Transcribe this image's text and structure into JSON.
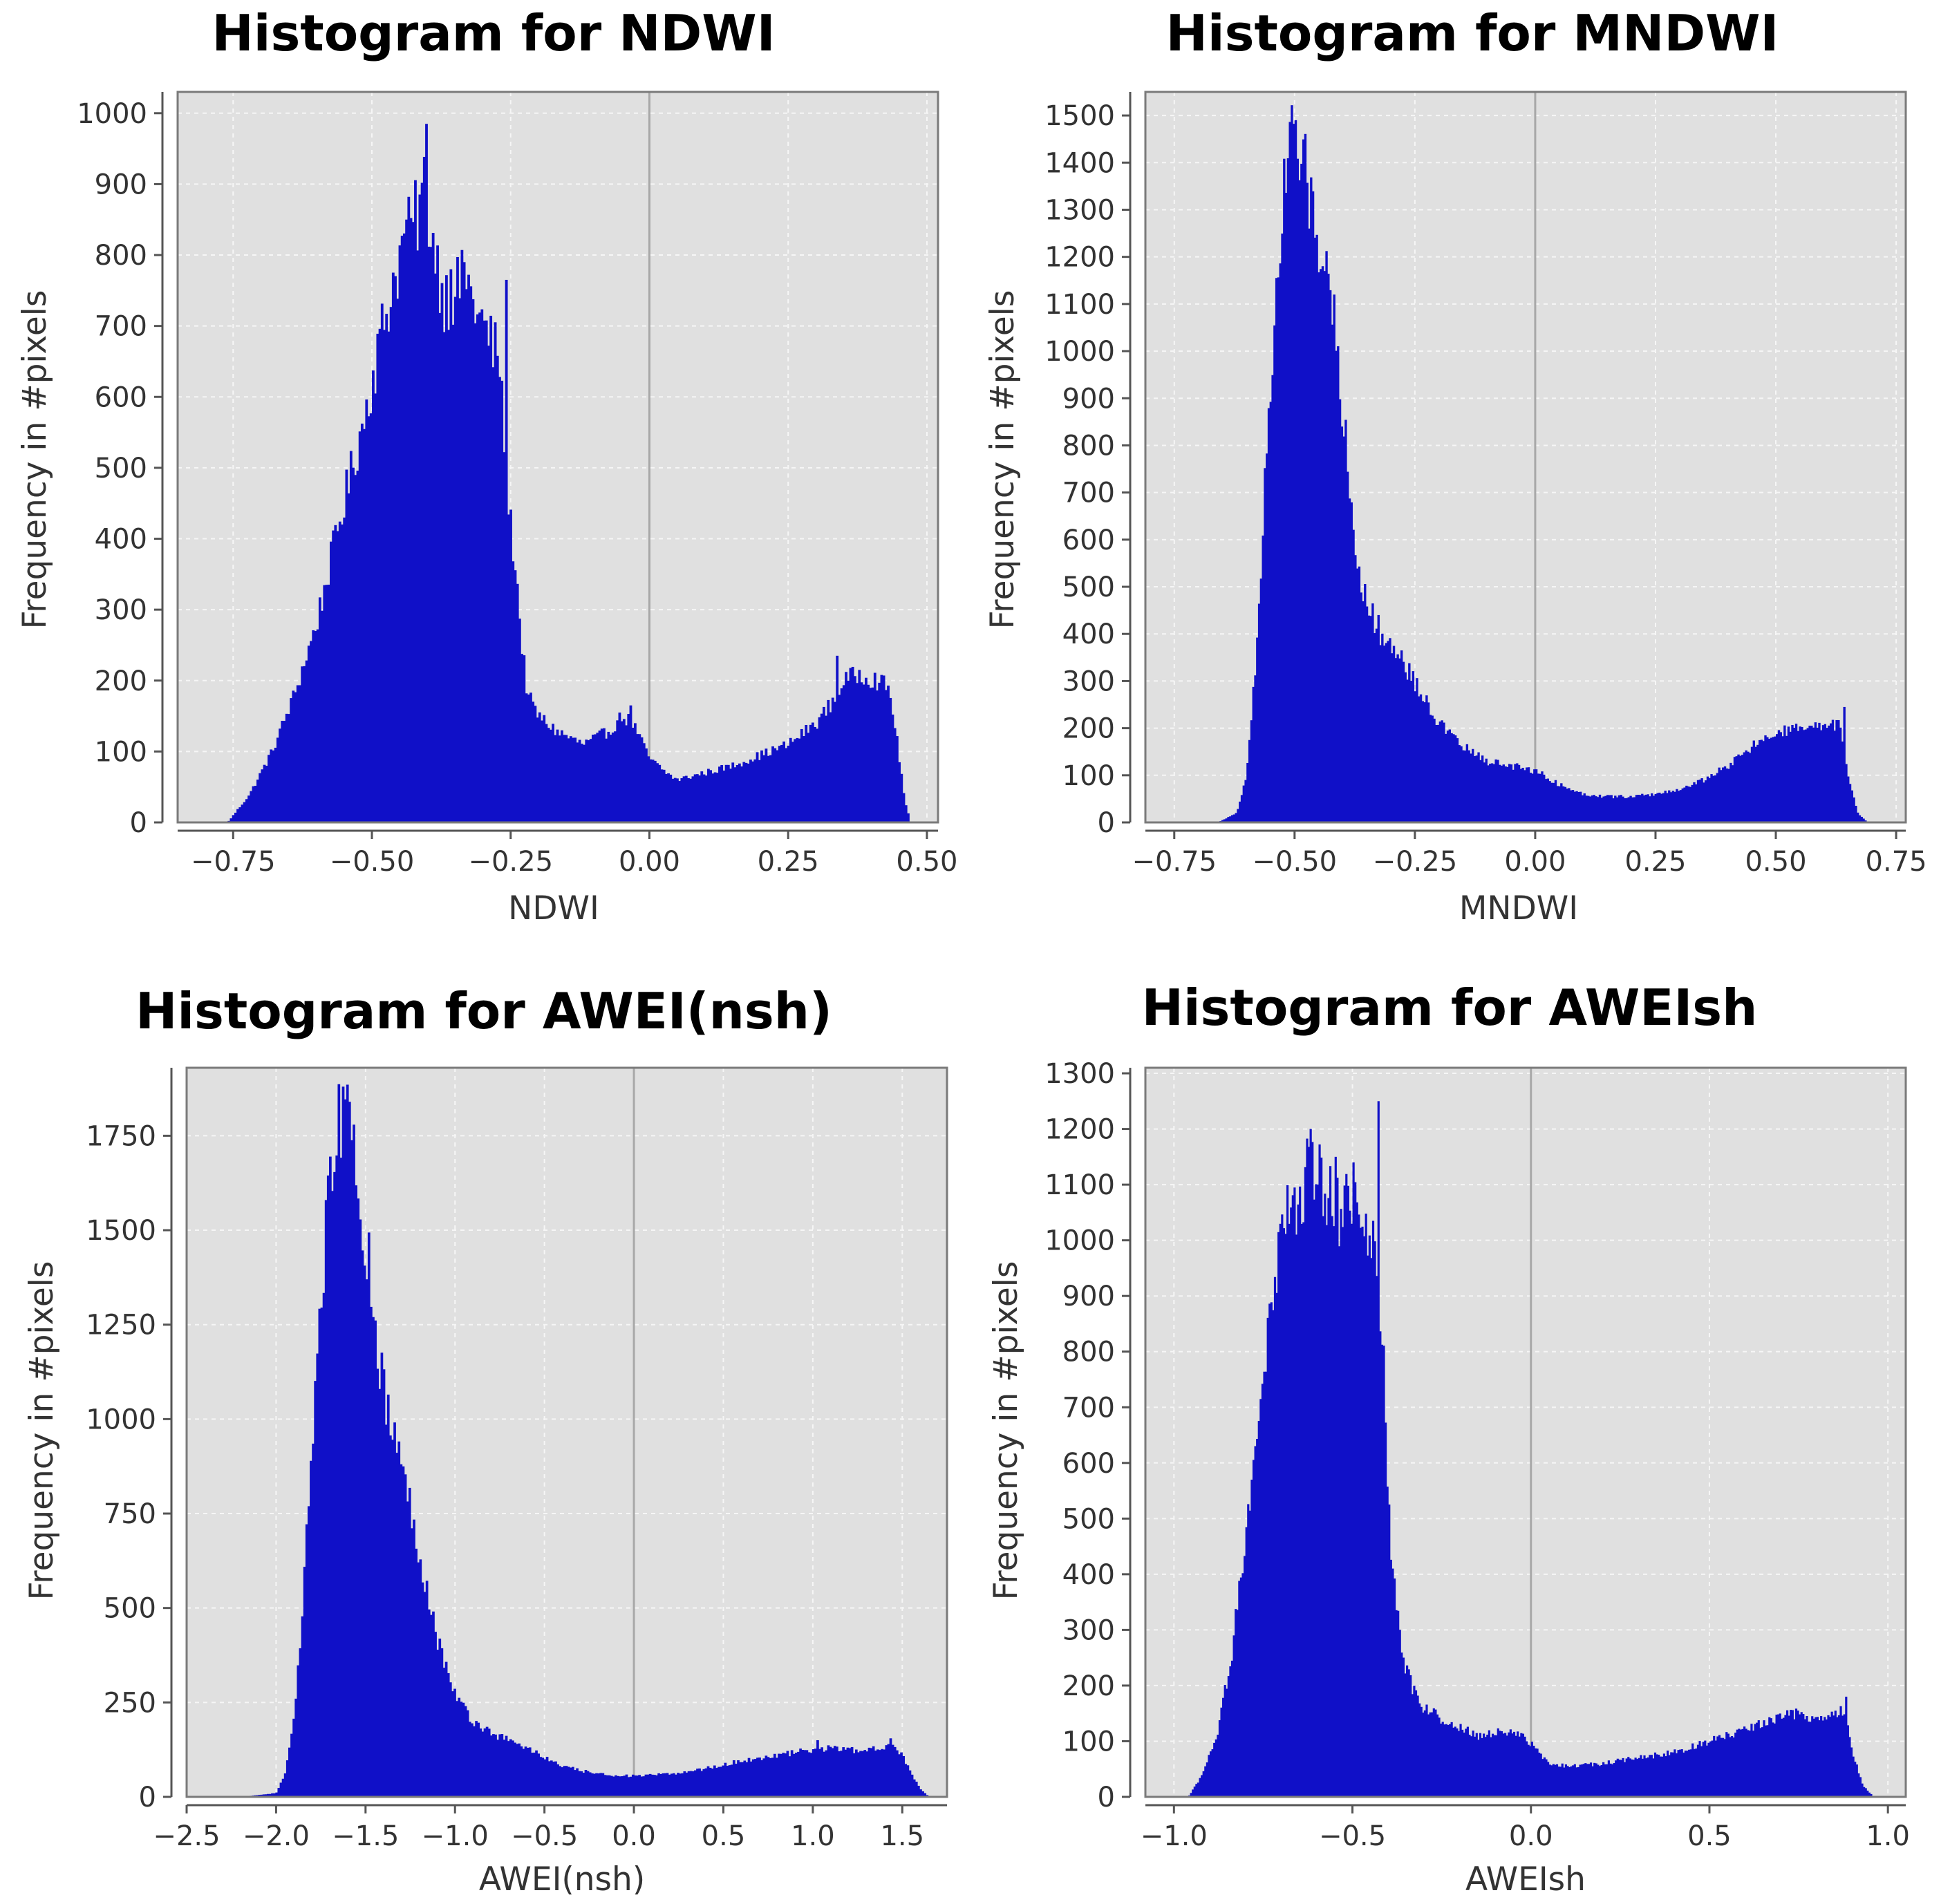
{
  "colors": {
    "plot_background": "#e0e0e0",
    "bars": "#1010c8",
    "grid": "#f6f6f6",
    "zero_line": "#a8a8a8",
    "frame": "#7a7a7a"
  },
  "chart_data": [
    {
      "type": "histogram",
      "title": "Histogram for NDWI",
      "xlabel": "NDWI",
      "ylabel": "Frequency in #pixels",
      "xlim": [
        -0.85,
        0.52
      ],
      "ylim": [
        0,
        1030
      ],
      "xticks": [
        -0.75,
        -0.5,
        -0.25,
        0.0,
        0.25,
        0.5
      ],
      "xtick_labels": [
        "−0.75",
        "−0.50",
        "−0.25",
        "0.00",
        "0.25",
        "0.50"
      ],
      "yticks": [
        0,
        100,
        200,
        300,
        400,
        500,
        600,
        700,
        800,
        900,
        1000
      ],
      "ytick_labels": [
        "0",
        "100",
        "200",
        "300",
        "400",
        "500",
        "600",
        "700",
        "800",
        "900",
        "1000"
      ],
      "grid": true,
      "zero_line": true,
      "bin_width": 0.004,
      "profile": {
        "x": [
          -0.76,
          -0.72,
          -0.68,
          -0.64,
          -0.6,
          -0.56,
          -0.52,
          -0.48,
          -0.45,
          -0.42,
          -0.405,
          -0.39,
          -0.37,
          -0.33,
          -0.3,
          -0.27,
          -0.26,
          -0.25,
          -0.24,
          -0.23,
          -0.22,
          -0.2,
          -0.17,
          -0.12,
          -0.07,
          -0.05,
          -0.03,
          0.0,
          0.03,
          0.05,
          0.1,
          0.15,
          0.2,
          0.25,
          0.3,
          0.33,
          0.35,
          0.38,
          0.41,
          0.43,
          0.44,
          0.45,
          0.46,
          0.47
        ],
        "y": [
          0,
          40,
          100,
          180,
          280,
          420,
          550,
          700,
          800,
          850,
          900,
          820,
          740,
          760,
          700,
          650,
          520,
          420,
          350,
          250,
          180,
          150,
          130,
          110,
          130,
          150,
          140,
          90,
          70,
          60,
          70,
          80,
          95,
          110,
          140,
          170,
          200,
          210,
          200,
          190,
          150,
          90,
          30,
          0
        ]
      },
      "spikes": [
        [
          -0.405,
          985
        ],
        [
          -0.335,
          790
        ],
        [
          -0.36,
          780
        ],
        [
          -0.26,
          765
        ],
        [
          -0.44,
          850
        ],
        [
          -0.035,
          165
        ],
        [
          0.335,
          235
        ]
      ]
    },
    {
      "type": "histogram",
      "title": "Histogram for MNDWI",
      "xlabel": "MNDWI",
      "ylabel": "Frequency in #pixels",
      "xlim": [
        -0.81,
        0.77
      ],
      "ylim": [
        0,
        1550
      ],
      "xticks": [
        -0.75,
        -0.5,
        -0.25,
        0.0,
        0.25,
        0.5,
        0.75
      ],
      "xtick_labels": [
        "−0.75",
        "−0.50",
        "−0.25",
        "0.00",
        "0.25",
        "0.50",
        "0.75"
      ],
      "yticks": [
        0,
        100,
        200,
        300,
        400,
        500,
        600,
        700,
        800,
        900,
        1000,
        1100,
        1200,
        1300,
        1400,
        1500
      ],
      "ytick_labels": [
        "0",
        "100",
        "200",
        "300",
        "400",
        "500",
        "600",
        "700",
        "800",
        "900",
        "1000",
        "1100",
        "1200",
        "1300",
        "1400",
        "1500"
      ],
      "grid": true,
      "zero_line": true,
      "bin_width": 0.004,
      "profile": {
        "x": [
          -0.66,
          -0.62,
          -0.6,
          -0.58,
          -0.56,
          -0.54,
          -0.52,
          -0.505,
          -0.49,
          -0.47,
          -0.45,
          -0.43,
          -0.41,
          -0.39,
          -0.37,
          -0.35,
          -0.32,
          -0.28,
          -0.24,
          -0.2,
          -0.15,
          -0.1,
          -0.05,
          0.0,
          0.05,
          0.1,
          0.15,
          0.2,
          0.25,
          0.3,
          0.35,
          0.4,
          0.45,
          0.5,
          0.55,
          0.6,
          0.63,
          0.65,
          0.67,
          0.69
        ],
        "y": [
          0,
          20,
          100,
          350,
          750,
          1100,
          1350,
          1460,
          1420,
          1330,
          1250,
          1150,
          1000,
          750,
          560,
          460,
          400,
          350,
          280,
          210,
          160,
          130,
          120,
          110,
          80,
          60,
          55,
          55,
          60,
          70,
          90,
          120,
          160,
          190,
          200,
          200,
          210,
          100,
          20,
          0
        ]
      },
      "spikes": [
        [
          -0.5,
          1490
        ],
        [
          -0.44,
          1170
        ],
        [
          -0.42,
          1120
        ],
        [
          0.64,
          245
        ]
      ]
    },
    {
      "type": "histogram",
      "title": "Histogram for AWEI(nsh)",
      "xlabel": "AWEI(nsh)",
      "ylabel": "Frequency in #pixels",
      "xlim": [
        -2.5,
        1.75
      ],
      "ylim": [
        0,
        1930
      ],
      "xticks": [
        -2.5,
        -2.0,
        -1.5,
        -1.0,
        -0.5,
        0.0,
        0.5,
        1.0,
        1.5
      ],
      "xtick_labels": [
        "−2.5",
        "−2.0",
        "−1.5",
        "−1.0",
        "−0.5",
        "0.0",
        "0.5",
        "1.0",
        "1.5"
      ],
      "yticks": [
        0,
        250,
        500,
        750,
        1000,
        1250,
        1500,
        1750
      ],
      "ytick_labels": [
        "0",
        "250",
        "500",
        "750",
        "1000",
        "1250",
        "1500",
        "1750"
      ],
      "grid": true,
      "zero_line": true,
      "bin_width": 0.012,
      "profile": {
        "x": [
          -2.2,
          -2.0,
          -1.95,
          -1.9,
          -1.85,
          -1.8,
          -1.75,
          -1.7,
          -1.65,
          -1.62,
          -1.58,
          -1.55,
          -1.5,
          -1.45,
          -1.4,
          -1.3,
          -1.2,
          -1.1,
          -1.0,
          -0.9,
          -0.8,
          -0.6,
          -0.4,
          -0.2,
          0.0,
          0.2,
          0.4,
          0.6,
          0.8,
          1.0,
          1.1,
          1.2,
          1.3,
          1.4,
          1.45,
          1.5,
          1.55,
          1.6,
          1.65
        ],
        "y": [
          0,
          10,
          60,
          200,
          500,
          950,
          1350,
          1600,
          1780,
          1800,
          1720,
          1640,
          1480,
          1270,
          1070,
          880,
          650,
          420,
          270,
          200,
          170,
          130,
          80,
          60,
          55,
          60,
          75,
          95,
          110,
          125,
          130,
          125,
          120,
          135,
          140,
          110,
          60,
          20,
          0
        ]
      },
      "spikes": [
        [
          -1.63,
          1880
        ],
        [
          -1.6,
          1840
        ],
        [
          1.43,
          155
        ],
        [
          1.02,
          150
        ]
      ]
    },
    {
      "type": "histogram",
      "title": "Histogram for AWEIsh",
      "xlabel": "AWEIsh",
      "ylabel": "Frequency in #pixels",
      "xlim": [
        -1.08,
        1.05
      ],
      "ylim": [
        0,
        1310
      ],
      "xticks": [
        -1.0,
        -0.5,
        0.0,
        0.5,
        1.0
      ],
      "xtick_labels": [
        "−1.0",
        "−0.5",
        "0.0",
        "0.5",
        "1.0"
      ],
      "yticks": [
        0,
        100,
        200,
        300,
        400,
        500,
        600,
        700,
        800,
        900,
        1000,
        1100,
        1200,
        1300
      ],
      "ytick_labels": [
        "0",
        "100",
        "200",
        "300",
        "400",
        "500",
        "600",
        "700",
        "800",
        "900",
        "1000",
        "1100",
        "1200",
        "1300"
      ],
      "grid": true,
      "zero_line": true,
      "bin_width": 0.005,
      "profile": {
        "x": [
          -0.96,
          -0.92,
          -0.88,
          -0.84,
          -0.8,
          -0.76,
          -0.72,
          -0.7,
          -0.66,
          -0.62,
          -0.58,
          -0.54,
          -0.5,
          -0.46,
          -0.43,
          -0.41,
          -0.4,
          -0.38,
          -0.36,
          -0.33,
          -0.3,
          -0.25,
          -0.15,
          -0.05,
          0.0,
          0.05,
          0.1,
          0.2,
          0.3,
          0.4,
          0.5,
          0.6,
          0.7,
          0.75,
          0.8,
          0.85,
          0.88,
          0.9,
          0.93,
          0.96
        ],
        "y": [
          0,
          40,
          110,
          250,
          460,
          720,
          900,
          1000,
          1080,
          1130,
          1080,
          1060,
          1040,
          1010,
          980,
          750,
          520,
          350,
          250,
          190,
          160,
          140,
          110,
          120,
          95,
          60,
          55,
          60,
          70,
          80,
          100,
          120,
          145,
          150,
          140,
          145,
          160,
          80,
          20,
          0
        ]
      },
      "spikes": [
        [
          -0.43,
          1250
        ],
        [
          -0.62,
          1200
        ],
        [
          -0.55,
          1150
        ],
        [
          -0.5,
          1140
        ],
        [
          0.88,
          180
        ]
      ]
    }
  ]
}
